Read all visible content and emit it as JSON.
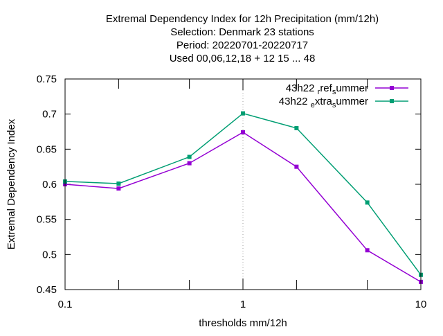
{
  "chart_data": {
    "type": "line",
    "title_lines": [
      "Extremal Dependency Index  for 12h Precipitation (mm/12h)",
      "Selection: Denmark     23 stations",
      "Period: 20220701-20220717",
      "Used  00,06,12,18  + 12 15 ... 48"
    ],
    "xlabel": "thresholds mm/12h",
    "ylabel": "Extremal Dependency Index",
    "x_scale": "log",
    "xlim": [
      0.1,
      10
    ],
    "ylim": [
      0.45,
      0.75
    ],
    "x_ticks": [
      0.1,
      0.2,
      0.5,
      1,
      2,
      5,
      10
    ],
    "x_tick_labels": [
      "0.1",
      "",
      "",
      "1",
      "",
      "",
      "10"
    ],
    "y_ticks": [
      0.45,
      0.5,
      0.55,
      0.6,
      0.65,
      0.7,
      0.75
    ],
    "y_tick_labels": [
      "0.45",
      "0.5",
      "0.55",
      "0.6",
      "0.65",
      "0.7",
      "0.75"
    ],
    "grid": "vertical dotted line at x=1",
    "legend_position": "top-right",
    "x": [
      0.1,
      0.2,
      0.5,
      1,
      2,
      5,
      10
    ],
    "series": [
      {
        "legend_main": "43h22",
        "legend_parts": [
          {
            "t": "ref",
            "sub": "r"
          },
          {
            "t": "ummer",
            "sub": "s"
          }
        ],
        "color": "#9400d3",
        "values": [
          0.6,
          0.594,
          0.63,
          0.674,
          0.625,
          0.506,
          0.461
        ]
      },
      {
        "legend_main": "43h22",
        "legend_parts": [
          {
            "t": "xtra",
            "sub": "e"
          },
          {
            "t": "ummer",
            "sub": "s"
          }
        ],
        "color": "#009e73",
        "values": [
          0.604,
          0.601,
          0.639,
          0.701,
          0.68,
          0.574,
          0.471
        ]
      }
    ]
  }
}
